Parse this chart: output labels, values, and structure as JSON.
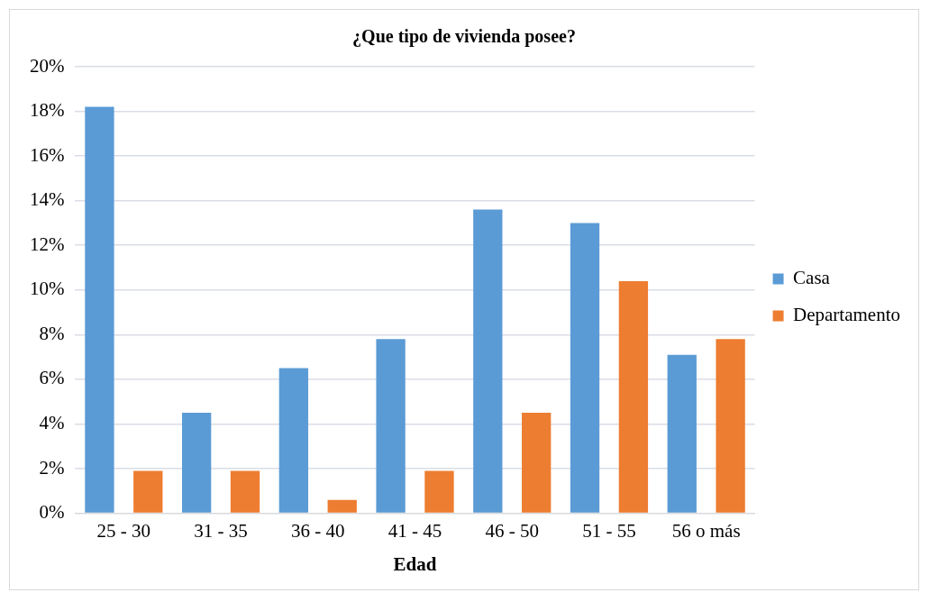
{
  "chart_data": {
    "type": "bar",
    "title": "¿Que tipo de vivienda posee?",
    "xlabel": "Edad",
    "categories": [
      "25 - 30",
      "31 - 35",
      "36 - 40",
      "41 - 45",
      "46 - 50",
      "51 - 55",
      "56 o más"
    ],
    "series": [
      {
        "name": "Casa",
        "color": "#5b9bd5",
        "values": [
          18.2,
          4.5,
          6.5,
          7.8,
          13.6,
          13.0,
          7.1
        ]
      },
      {
        "name": "Departamento",
        "color": "#ed7d31",
        "values": [
          1.9,
          1.9,
          0.6,
          1.9,
          4.5,
          10.4,
          7.8
        ]
      }
    ],
    "ylim": [
      0,
      20
    ],
    "yticks": [
      {
        "value": 0,
        "label": "0%"
      },
      {
        "value": 2,
        "label": "2%"
      },
      {
        "value": 4,
        "label": "4%"
      },
      {
        "value": 6,
        "label": "6%"
      },
      {
        "value": 8,
        "label": "8%"
      },
      {
        "value": 10,
        "label": "10%"
      },
      {
        "value": 12,
        "label": "12%"
      },
      {
        "value": 14,
        "label": "14%"
      },
      {
        "value": 16,
        "label": "16%"
      },
      {
        "value": 18,
        "label": "18%"
      },
      {
        "value": 20,
        "label": "20%"
      }
    ],
    "grid": "y",
    "legend": "right"
  }
}
